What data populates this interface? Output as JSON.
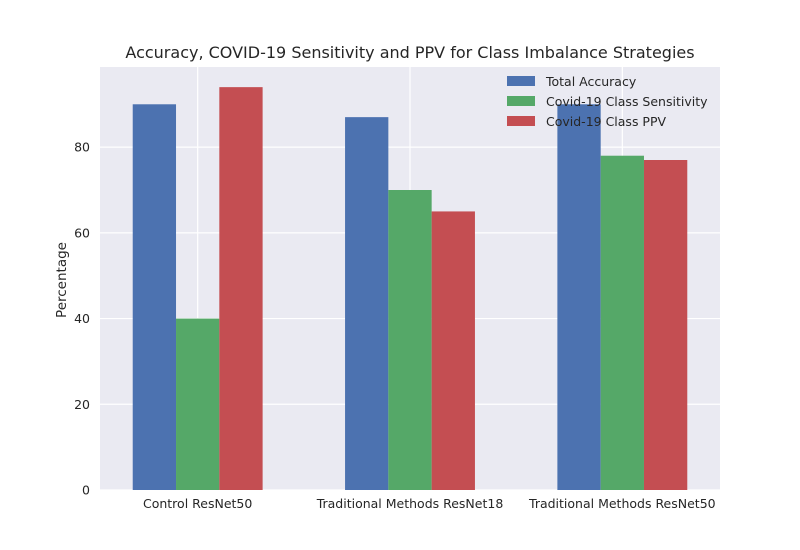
{
  "chart_data": {
    "type": "bar",
    "title": "Accuracy, COVID-19 Sensitivity and PPV for Class Imbalance Strategies",
    "xlabel": "",
    "ylabel": "Percentage",
    "categories": [
      "Control ResNet50",
      "Traditional Methods ResNet18",
      "Traditional Methods ResNet50"
    ],
    "series": [
      {
        "name": "Total Accuracy",
        "color": "#4c72b0",
        "values": [
          90,
          87,
          90
        ]
      },
      {
        "name": "Covid-19 Class Sensitivity",
        "color": "#55a868",
        "values": [
          40,
          70,
          78
        ]
      },
      {
        "name": "Covid-19 Class PPV",
        "color": "#c44e52",
        "values": [
          94,
          65,
          77
        ]
      }
    ],
    "ylim": [
      0,
      98.7
    ],
    "yticks": [
      "0",
      "20",
      "40",
      "60",
      "80"
    ],
    "grid": true,
    "legend": "top-right",
    "background": "#eaeaf2"
  }
}
